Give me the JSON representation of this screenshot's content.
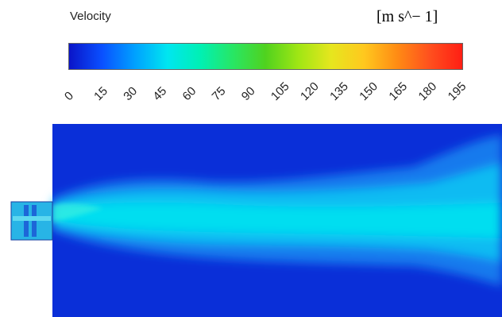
{
  "legend": {
    "title": "Velocity",
    "unit": "[m s^− 1]",
    "ticks": [
      "0",
      "15",
      "30",
      "45",
      "60",
      "75",
      "90",
      "105",
      "120",
      "135",
      "150",
      "165",
      "180",
      "195"
    ],
    "min": 0,
    "max": 200,
    "colormap": [
      "#0a14c8",
      "#0a50ff",
      "#00a0ff",
      "#00e6f0",
      "#00f0b4",
      "#28e664",
      "#50d21e",
      "#a0e614",
      "#e6e61e",
      "#ffc81e",
      "#ff8c14",
      "#ff501e",
      "#ff1e14"
    ]
  },
  "field": {
    "background_color": "#0a2fd8",
    "jet_color": "#00e0f0",
    "inlet_color": "#28b4e6"
  }
}
